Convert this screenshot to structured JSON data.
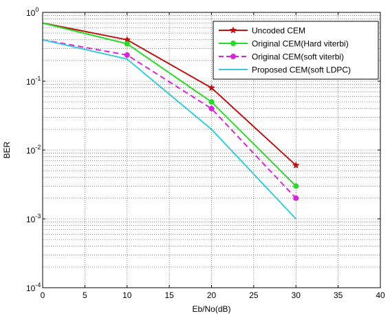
{
  "chart_data": {
    "type": "line",
    "title": "",
    "xlabel": "Eb/No(dB)",
    "ylabel": "BER",
    "xlim": [
      0,
      40
    ],
    "ylim": [
      0.0001,
      1
    ],
    "yscale": "log",
    "grid": true,
    "legend_position": "top-right",
    "x_ticks": [
      0,
      5,
      10,
      15,
      20,
      25,
      30,
      35,
      40
    ],
    "x_tick_labels": [
      "0",
      "5",
      "10",
      "15",
      "20",
      "25",
      "30",
      "35",
      "40"
    ],
    "y_ticks": [
      {
        "value": 0.0001,
        "base": "10",
        "exp": "-4"
      },
      {
        "value": 0.001,
        "base": "10",
        "exp": "-3"
      },
      {
        "value": 0.01,
        "base": "10",
        "exp": "-2"
      },
      {
        "value": 0.1,
        "base": "10",
        "exp": "-1"
      },
      {
        "value": 1,
        "base": "10",
        "exp": "0"
      }
    ],
    "series": [
      {
        "name": "Uncoded CEM",
        "color": "#c01010",
        "dash": "solid",
        "marker": "star",
        "x": [
          0,
          10,
          20,
          30
        ],
        "y": [
          0.7,
          0.4,
          0.08,
          0.006
        ]
      },
      {
        "name": "Original CEM(Hard viterbi)",
        "color": "#22dd22",
        "dash": "solid",
        "marker": "circle",
        "x": [
          0,
          10,
          20,
          30
        ],
        "y": [
          0.7,
          0.35,
          0.05,
          0.003
        ]
      },
      {
        "name": "Original CEM(soft viterbi)",
        "color": "#dd22dd",
        "dash": "dashed",
        "marker": "circle",
        "x": [
          0,
          10,
          20,
          30
        ],
        "y": [
          0.4,
          0.24,
          0.04,
          0.002
        ]
      },
      {
        "name": "Proposed CEM(soft LDPC)",
        "color": "#33ccdd",
        "dash": "solid",
        "marker": "none",
        "x": [
          0,
          10,
          20,
          30
        ],
        "y": [
          0.4,
          0.21,
          0.02,
          0.001
        ]
      }
    ]
  }
}
